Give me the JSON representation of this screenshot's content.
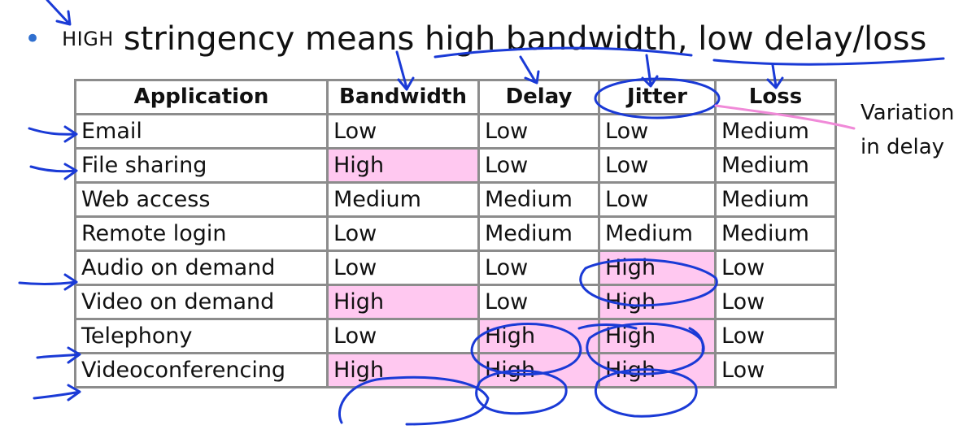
{
  "headline": {
    "lead": "HIGH",
    "text": "stringency means high bandwidth, low delay/loss"
  },
  "table": {
    "headers": [
      "Application",
      "Bandwidth",
      "Delay",
      "Jitter",
      "Loss"
    ],
    "rows": [
      {
        "app": "Email",
        "bandwidth": "Low",
        "delay": "Low",
        "jitter": "Low",
        "loss": "Medium"
      },
      {
        "app": "File sharing",
        "bandwidth": "High",
        "delay": "Low",
        "jitter": "Low",
        "loss": "Medium"
      },
      {
        "app": "Web access",
        "bandwidth": "Medium",
        "delay": "Medium",
        "jitter": "Low",
        "loss": "Medium"
      },
      {
        "app": "Remote login",
        "bandwidth": "Low",
        "delay": "Medium",
        "jitter": "Medium",
        "loss": "Medium"
      },
      {
        "app": "Audio on demand",
        "bandwidth": "Low",
        "delay": "Low",
        "jitter": "High",
        "loss": "Low"
      },
      {
        "app": "Video on demand",
        "bandwidth": "High",
        "delay": "Low",
        "jitter": "High",
        "loss": "Low"
      },
      {
        "app": "Telephony",
        "bandwidth": "Low",
        "delay": "High",
        "jitter": "High",
        "loss": "Low"
      },
      {
        "app": "Videoconferencing",
        "bandwidth": "High",
        "delay": "High",
        "jitter": "High",
        "loss": "Low"
      }
    ]
  },
  "side_note": {
    "line1": "Variation",
    "line2": "in delay"
  },
  "colors": {
    "highlight": "#ffc8f0",
    "ink": "#1a3ad6",
    "pink_ink": "#f08ad8",
    "grid": "#8c8c8c"
  }
}
